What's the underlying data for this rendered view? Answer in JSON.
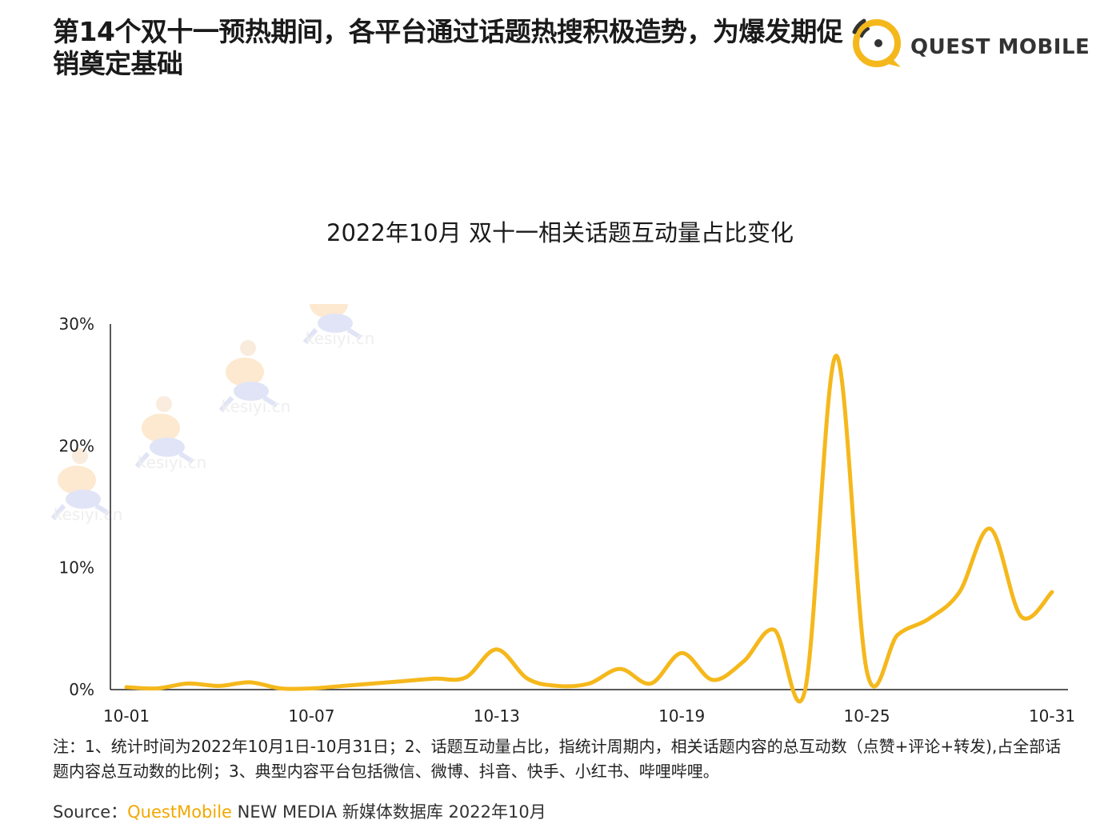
{
  "header": {
    "title": "第14个双十一预热期间，各平台通过话题热搜积极造势，为爆发期促销奠定基础",
    "logo_text": "QUEST MOBILE"
  },
  "chart_data": {
    "type": "line",
    "title": "2022年10月 双十一相关话题互动量占比变化",
    "xlabel": "",
    "ylabel": "",
    "x_ticks": [
      "10-01",
      "10-07",
      "10-13",
      "10-19",
      "10-25",
      "10-31"
    ],
    "y_ticks": [
      "0%",
      "10%",
      "20%",
      "30%"
    ],
    "ylim": [
      0,
      30
    ],
    "grid": false,
    "color": "#f5b81c",
    "categories": [
      "10-01",
      "10-02",
      "10-03",
      "10-04",
      "10-05",
      "10-06",
      "10-07",
      "10-08",
      "10-09",
      "10-10",
      "10-11",
      "10-12",
      "10-13",
      "10-14",
      "10-15",
      "10-16",
      "10-17",
      "10-18",
      "10-19",
      "10-20",
      "10-21",
      "10-22",
      "10-23",
      "10-24",
      "10-25",
      "10-26",
      "10-27",
      "10-28",
      "10-29",
      "10-30",
      "10-31"
    ],
    "values": [
      0.2,
      0.1,
      0.5,
      0.3,
      0.6,
      0.1,
      0.1,
      0.3,
      0.5,
      0.7,
      0.9,
      1.0,
      3.3,
      0.9,
      0.3,
      0.5,
      1.7,
      0.5,
      3.0,
      0.8,
      2.3,
      4.9,
      0.0,
      27.4,
      1.5,
      4.5,
      5.8,
      8.0,
      13.2,
      6.0,
      8.0
    ]
  },
  "watermark": {
    "text": "kesiyi.cn"
  },
  "footer": {
    "note": "注：1、统计时间为2022年10月1日-10月31日；2、话题互动量占比，指统计周期内，相关话题内容的总互动数（点赞+评论+转发),占全部话题内容总互动数的比例；3、典型内容平台包括微信、微博、抖音、快手、小红书、哔哩哔哩。",
    "source_label": "Source：",
    "source_brand": "QuestMobile",
    "source_rest": " NEW MEDIA 新媒体数据库 2022年10月"
  }
}
